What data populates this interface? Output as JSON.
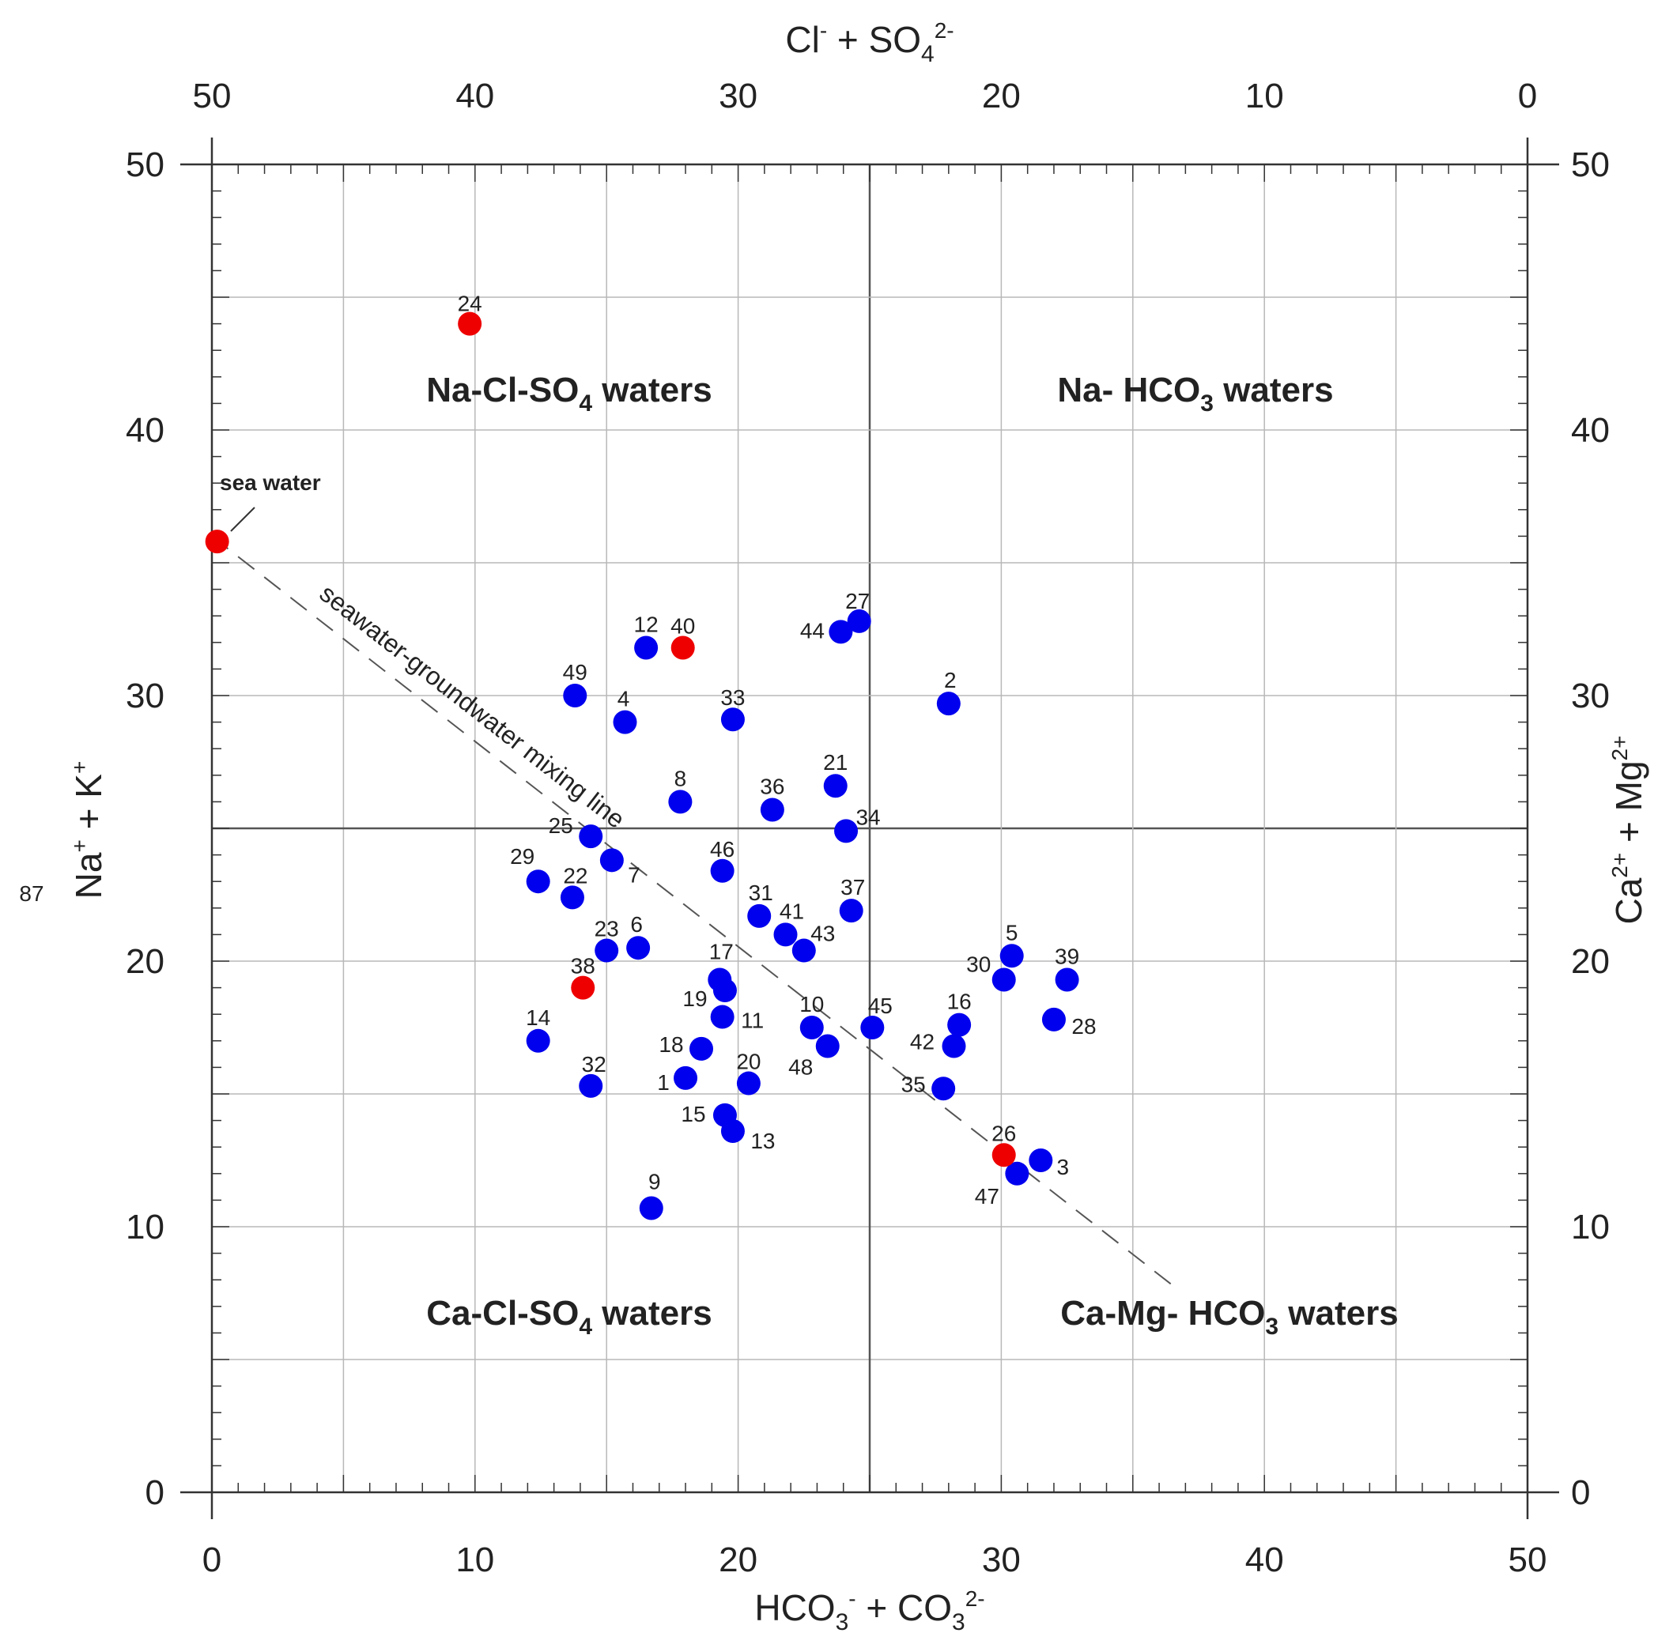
{
  "chart_data": {
    "type": "scatter",
    "title": "",
    "x_bottom": {
      "label": "HCO3- + CO3 2-",
      "range": [
        0,
        50
      ],
      "ticks": [
        "0",
        "10",
        "20",
        "30",
        "40",
        "50"
      ]
    },
    "x_top": {
      "label": "Cl- + SO4 2-",
      "range": [
        50,
        0
      ],
      "ticks": [
        "50",
        "40",
        "30",
        "20",
        "10",
        "0"
      ]
    },
    "y_left": {
      "label": "Na+ + K+",
      "range": [
        0,
        50
      ],
      "ticks": [
        "0",
        "10",
        "20",
        "30",
        "40",
        "50"
      ]
    },
    "y_right": {
      "label": "Ca2+ + Mg2+",
      "range": [
        50,
        0
      ],
      "ticks": [
        "50",
        "40",
        "30",
        "20",
        "10",
        "0"
      ]
    },
    "stray_label": "87",
    "grid": true,
    "quadrant_dividers": {
      "x": 25,
      "y": 25
    },
    "regions": [
      "Na-Cl-SO4 waters",
      "Na- HCO3 waters",
      "Ca-Cl-SO4 waters",
      "Ca-Mg- HCO3 waters"
    ],
    "mixing_line": {
      "label": "seawater-groundwater mixing line",
      "from": [
        0,
        36
      ],
      "to": [
        36.5,
        7.8
      ]
    },
    "sea_water_label": "sea water",
    "colors": {
      "blue_points": "#0000ee",
      "red_points": "#ee0000",
      "grid": "#b8b8b8",
      "axis": "#333333"
    },
    "series": [
      {
        "color": "#0000ee",
        "points": [
          {
            "label": "1",
            "x": 18.0,
            "y": 15.6
          },
          {
            "label": "2",
            "x": 28.0,
            "y": 29.7
          },
          {
            "label": "3",
            "x": 31.5,
            "y": 12.5
          },
          {
            "label": "4",
            "x": 15.7,
            "y": 29.0
          },
          {
            "label": "5",
            "x": 30.4,
            "y": 20.2
          },
          {
            "label": "6",
            "x": 16.2,
            "y": 20.5
          },
          {
            "label": "7",
            "x": 15.2,
            "y": 23.8
          },
          {
            "label": "8",
            "x": 17.8,
            "y": 26.0
          },
          {
            "label": "9",
            "x": 16.7,
            "y": 10.7
          },
          {
            "label": "10",
            "x": 22.8,
            "y": 17.5
          },
          {
            "label": "11",
            "x": 19.4,
            "y": 17.9
          },
          {
            "label": "12",
            "x": 16.5,
            "y": 31.8
          },
          {
            "label": "13",
            "x": 19.8,
            "y": 13.6
          },
          {
            "label": "14",
            "x": 12.4,
            "y": 17.0
          },
          {
            "label": "15",
            "x": 19.5,
            "y": 14.2
          },
          {
            "label": "16",
            "x": 28.4,
            "y": 17.6
          },
          {
            "label": "17",
            "x": 19.3,
            "y": 19.3
          },
          {
            "label": "18",
            "x": 18.6,
            "y": 16.7
          },
          {
            "label": "19",
            "x": 19.5,
            "y": 18.9
          },
          {
            "label": "20",
            "x": 20.4,
            "y": 15.4
          },
          {
            "label": "21",
            "x": 23.7,
            "y": 26.6
          },
          {
            "label": "22",
            "x": 13.7,
            "y": 22.4
          },
          {
            "label": "23",
            "x": 15.0,
            "y": 20.4
          },
          {
            "label": "25",
            "x": 14.4,
            "y": 24.7
          },
          {
            "label": "27",
            "x": 24.6,
            "y": 32.8
          },
          {
            "label": "28",
            "x": 32.0,
            "y": 17.8
          },
          {
            "label": "29",
            "x": 12.4,
            "y": 23.0
          },
          {
            "label": "30",
            "x": 30.1,
            "y": 19.3
          },
          {
            "label": "31",
            "x": 20.8,
            "y": 21.7
          },
          {
            "label": "32",
            "x": 14.4,
            "y": 15.3
          },
          {
            "label": "33",
            "x": 19.8,
            "y": 29.1
          },
          {
            "label": "34",
            "x": 24.1,
            "y": 24.9
          },
          {
            "label": "35",
            "x": 27.8,
            "y": 15.2
          },
          {
            "label": "36",
            "x": 21.3,
            "y": 25.7
          },
          {
            "label": "37",
            "x": 24.3,
            "y": 21.9
          },
          {
            "label": "39",
            "x": 32.5,
            "y": 19.3
          },
          {
            "label": "41",
            "x": 21.8,
            "y": 21.0
          },
          {
            "label": "42",
            "x": 28.2,
            "y": 16.8
          },
          {
            "label": "43",
            "x": 22.5,
            "y": 20.4
          },
          {
            "label": "44",
            "x": 23.9,
            "y": 32.4
          },
          {
            "label": "45",
            "x": 25.1,
            "y": 17.5
          },
          {
            "label": "46",
            "x": 19.4,
            "y": 23.4
          },
          {
            "label": "47",
            "x": 30.6,
            "y": 12.0
          },
          {
            "label": "48",
            "x": 23.4,
            "y": 16.8
          },
          {
            "label": "49",
            "x": 13.8,
            "y": 30.0
          }
        ]
      },
      {
        "color": "#ee0000",
        "points": [
          {
            "label": "24",
            "x": 9.8,
            "y": 44.0
          },
          {
            "label": "26",
            "x": 30.1,
            "y": 12.7
          },
          {
            "label": "38",
            "x": 14.1,
            "y": 19.0
          },
          {
            "label": "40",
            "x": 17.9,
            "y": 31.8
          },
          {
            "label": "",
            "x": 0.2,
            "y": 35.8
          }
        ]
      }
    ]
  }
}
